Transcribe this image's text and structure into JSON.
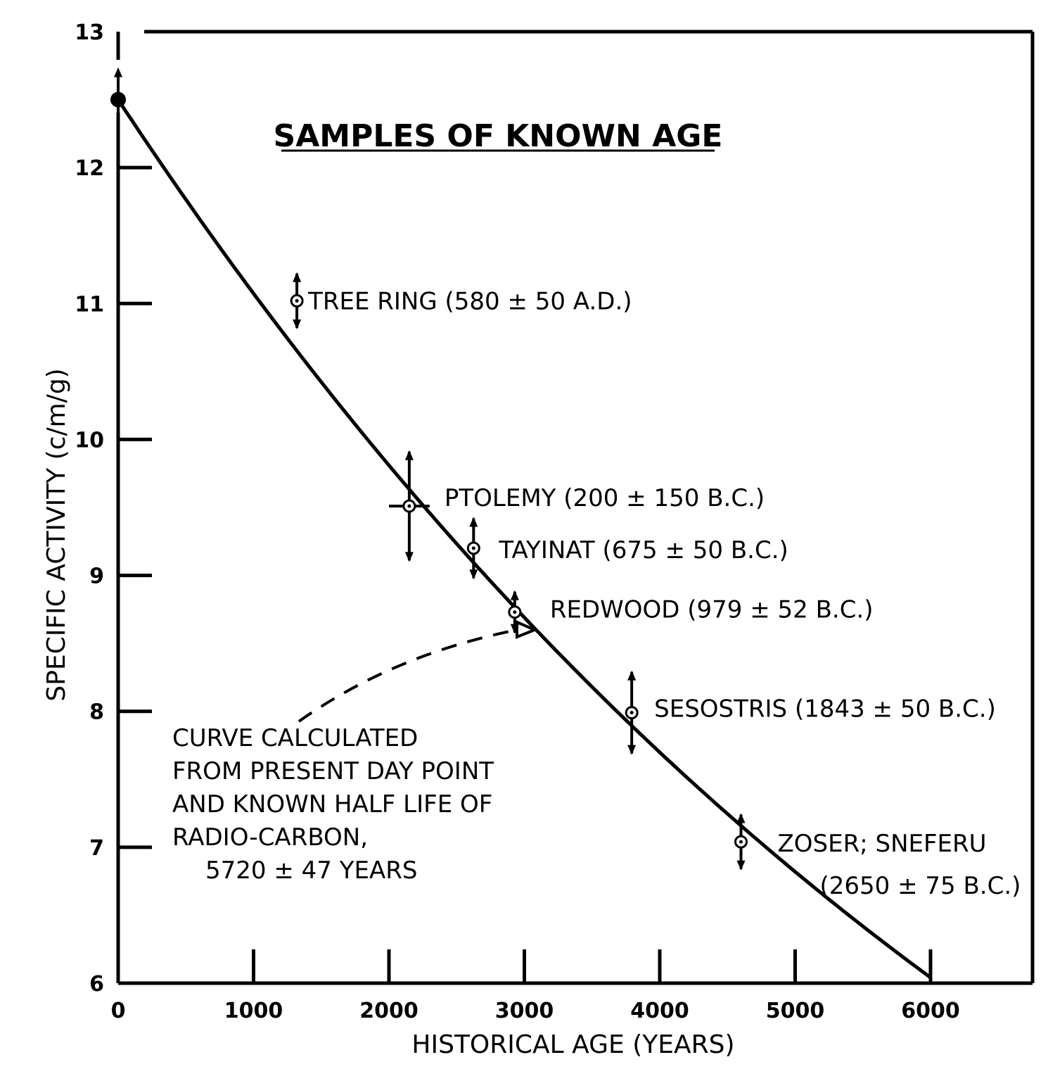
{
  "chart_data": {
    "type": "scatter",
    "title": "SAMPLES OF KNOWN AGE",
    "xlabel": "HISTORICAL AGE (YEARS)",
    "ylabel": "SPECIFIC ACTIVITY (c/m/g)",
    "xlim": [
      0,
      6800
    ],
    "ylim": [
      6,
      13
    ],
    "x_ticks": [
      0,
      1000,
      2000,
      3000,
      4000,
      5000,
      6000
    ],
    "y_ticks": [
      6,
      7,
      8,
      9,
      10,
      11,
      12,
      13
    ],
    "grid": false,
    "points": [
      {
        "label": "TREE RING (580 ± 50 A.D.)",
        "x": 1320,
        "y": 11.02,
        "y_err": 0.2
      },
      {
        "label": "PTOLEMY (200 ± 150 B.C.)",
        "x": 2150,
        "y": 9.51,
        "y_err": 0.4,
        "x_err": 150
      },
      {
        "label": "TAYINAT (675 ± 50 B.C.)",
        "x": 2625,
        "y": 9.2,
        "y_err": 0.22
      },
      {
        "label": "REDWOOD (979 ± 52 B.C.)",
        "x": 2929,
        "y": 8.73,
        "y_err": 0.15
      },
      {
        "label": "SESOSTRIS (1843 ± 50 B.C.)",
        "x": 3793,
        "y": 7.99,
        "y_err": 0.3
      },
      {
        "label": "ZOSER; SNEFERU",
        "label_line2": "(2650 ± 75 B.C.)",
        "x": 4600,
        "y": 7.04,
        "y_err": 0.2
      }
    ],
    "present_day_point": {
      "x": 0,
      "y": 12.5
    },
    "curve": {
      "half_life": 5720,
      "start_value": 12.5
    },
    "curve_note": [
      "CURVE CALCULATED",
      "FROM PRESENT DAY POINT",
      "AND KNOWN HALF LIFE OF",
      "RADIO-CARBON,",
      "5720 ± 47 YEARS"
    ]
  }
}
